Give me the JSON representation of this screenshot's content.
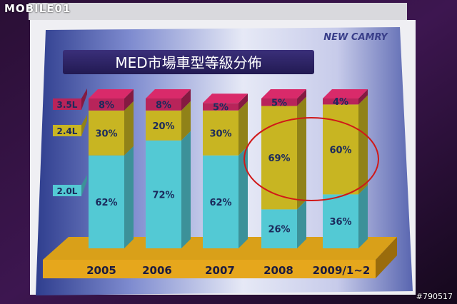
{
  "watermark": {
    "logo": "MOBILE01",
    "id": "#790517"
  },
  "slide": {
    "brand": "NEW CAMRY"
  },
  "chart_data": {
    "type": "bar",
    "stacked": true,
    "title": "MED市場車型等級分佈",
    "categories": [
      "2005",
      "2006",
      "2007",
      "2008",
      "2009/1~2"
    ],
    "ylim": [
      0,
      100
    ],
    "legend_position": "left",
    "series": [
      {
        "name": "2.0L",
        "color": "#53c9d4",
        "values": [
          62,
          72,
          62,
          26,
          36
        ],
        "labels": [
          "62%",
          "72%",
          "62%",
          "26%",
          "36%"
        ]
      },
      {
        "name": "2.4L",
        "color": "#c8b522",
        "values": [
          30,
          20,
          30,
          69,
          60
        ],
        "labels": [
          "30%",
          "20%",
          "30%",
          "69%",
          "60%"
        ]
      },
      {
        "name": "3.5L",
        "color": "#b8245a",
        "values": [
          8,
          8,
          5,
          5,
          4
        ],
        "labels": [
          "8%",
          "8%",
          "5%",
          "5%",
          "4%"
        ]
      }
    ],
    "highlight": [
      "2008",
      "2009/1~2"
    ]
  }
}
